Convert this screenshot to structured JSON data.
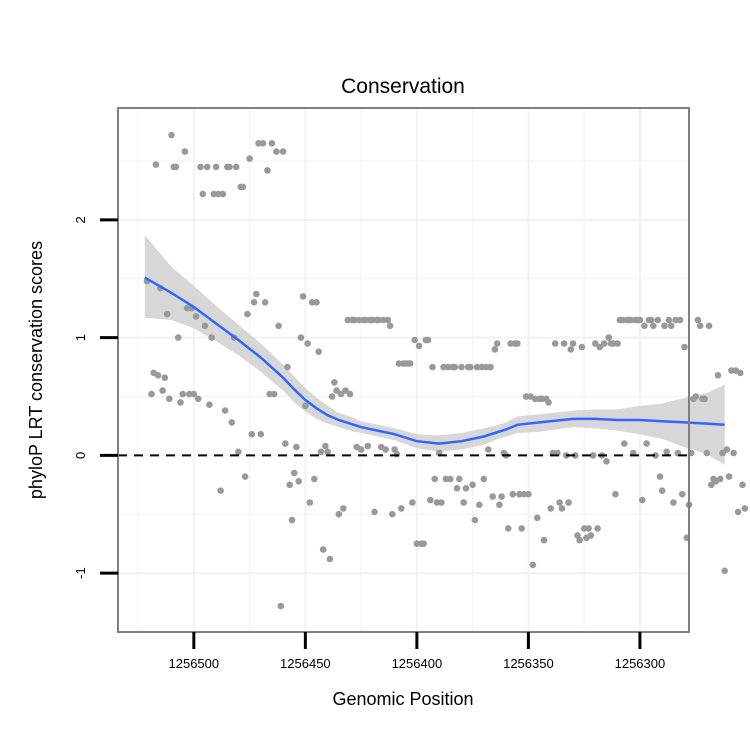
{
  "chart_data": {
    "type": "scatter",
    "title": "Conservation",
    "xlabel": "Genomic Position",
    "ylabel": "phyloP LRT conservation scores",
    "x_reversed": true,
    "xlim": [
      1256534,
      1256278
    ],
    "ylim": [
      -1.5,
      2.95
    ],
    "xticks": [
      1256500,
      1256450,
      1256400,
      1256350,
      1256300
    ],
    "xtick_labels": [
      "1256500",
      "1256450",
      "1256400",
      "1256350",
      "1256300"
    ],
    "yticks": [
      -1,
      0,
      1,
      2
    ],
    "ytick_labels": [
      "-1",
      "0",
      "1",
      "2"
    ],
    "reference_line": {
      "y": 0,
      "style": "dashed"
    },
    "colors": {
      "points": "#999999",
      "smooth": "#3366ff",
      "ribbon": "#d3d3d3",
      "panel_border": "#7f7f7f",
      "grid": "#f2f2f2"
    },
    "points": [
      [
        1256521,
        1.48
      ],
      [
        1256519,
        0.52
      ],
      [
        1256518,
        0.7
      ],
      [
        1256517,
        2.47
      ],
      [
        1256516,
        0.68
      ],
      [
        1256515,
        1.42
      ],
      [
        1256514,
        0.55
      ],
      [
        1256513,
        0.66
      ],
      [
        1256512,
        1.2
      ],
      [
        1256511,
        0.48
      ],
      [
        1256510,
        2.72
      ],
      [
        1256509,
        2.45
      ],
      [
        1256508,
        2.45
      ],
      [
        1256507,
        1.0
      ],
      [
        1256506,
        0.45
      ],
      [
        1256505,
        0.52
      ],
      [
        1256504,
        2.58
      ],
      [
        1256503,
        1.25
      ],
      [
        1256502,
        0.52
      ],
      [
        1256501,
        1.25
      ],
      [
        1256500,
        0.52
      ],
      [
        1256499,
        1.18
      ],
      [
        1256498,
        0.48
      ],
      [
        1256497,
        2.45
      ],
      [
        1256496,
        2.22
      ],
      [
        1256495,
        1.1
      ],
      [
        1256494,
        2.45
      ],
      [
        1256493,
        0.43
      ],
      [
        1256492,
        1.0
      ],
      [
        1256491,
        2.22
      ],
      [
        1256490,
        2.45
      ],
      [
        1256489,
        2.22
      ],
      [
        1256488,
        -0.3
      ],
      [
        1256487,
        2.22
      ],
      [
        1256486,
        0.38
      ],
      [
        1256485,
        2.45
      ],
      [
        1256484,
        2.45
      ],
      [
        1256483,
        0.28
      ],
      [
        1256482,
        1.0
      ],
      [
        1256481,
        2.45
      ],
      [
        1256480,
        0.03
      ],
      [
        1256479,
        2.28
      ],
      [
        1256478,
        2.28
      ],
      [
        1256477,
        -0.18
      ],
      [
        1256476,
        1.2
      ],
      [
        1256475,
        2.52
      ],
      [
        1256474,
        0.18
      ],
      [
        1256473,
        1.3
      ],
      [
        1256472,
        1.37
      ],
      [
        1256471,
        2.65
      ],
      [
        1256470,
        0.18
      ],
      [
        1256469,
        2.65
      ],
      [
        1256468,
        1.3
      ],
      [
        1256467,
        2.42
      ],
      [
        1256466,
        0.52
      ],
      [
        1256465,
        2.65
      ],
      [
        1256464,
        0.52
      ],
      [
        1256463,
        2.58
      ],
      [
        1256462,
        1.1
      ],
      [
        1256461,
        -1.28
      ],
      [
        1256460,
        2.58
      ],
      [
        1256459,
        0.1
      ],
      [
        1256458,
        0.75
      ],
      [
        1256457,
        -0.25
      ],
      [
        1256456,
        -0.55
      ],
      [
        1256455,
        -0.15
      ],
      [
        1256454,
        0.07
      ],
      [
        1256453,
        -0.22
      ],
      [
        1256452,
        1.0
      ],
      [
        1256451,
        1.35
      ],
      [
        1256450,
        0.42
      ],
      [
        1256449,
        0.95
      ],
      [
        1256448,
        -0.4
      ],
      [
        1256447,
        1.3
      ],
      [
        1256446,
        -0.2
      ],
      [
        1256445,
        1.3
      ],
      [
        1256444,
        0.88
      ],
      [
        1256443,
        0.03
      ],
      [
        1256442,
        -0.8
      ],
      [
        1256441,
        0.08
      ],
      [
        1256440,
        0.03
      ],
      [
        1256439,
        -0.88
      ],
      [
        1256438,
        0.5
      ],
      [
        1256437,
        0.62
      ],
      [
        1256436,
        0.55
      ],
      [
        1256435,
        -0.5
      ],
      [
        1256434,
        0.52
      ],
      [
        1256433,
        -0.45
      ],
      [
        1256432,
        0.55
      ],
      [
        1256431,
        1.15
      ],
      [
        1256430,
        0.52
      ],
      [
        1256429,
        1.15
      ],
      [
        1256428,
        1.15
      ],
      [
        1256427,
        0.07
      ],
      [
        1256426,
        1.15
      ],
      [
        1256425,
        0.05
      ],
      [
        1256424,
        1.15
      ],
      [
        1256423,
        1.15
      ],
      [
        1256422,
        0.08
      ],
      [
        1256421,
        1.15
      ],
      [
        1256420,
        1.15
      ],
      [
        1256419,
        -0.48
      ],
      [
        1256418,
        1.15
      ],
      [
        1256417,
        1.15
      ],
      [
        1256416,
        0.07
      ],
      [
        1256415,
        1.15
      ],
      [
        1256414,
        0.05
      ],
      [
        1256413,
        1.15
      ],
      [
        1256412,
        1.1
      ],
      [
        1256411,
        -0.5
      ],
      [
        1256410,
        0.05
      ],
      [
        1256409,
        0.01
      ],
      [
        1256408,
        0.78
      ],
      [
        1256407,
        -0.45
      ],
      [
        1256406,
        0.78
      ],
      [
        1256405,
        0.78
      ],
      [
        1256404,
        0.78
      ],
      [
        1256403,
        0.78
      ],
      [
        1256402,
        -0.4
      ],
      [
        1256401,
        0.98
      ],
      [
        1256400,
        -0.75
      ],
      [
        1256399,
        0.93
      ],
      [
        1256398,
        -0.75
      ],
      [
        1256397,
        -0.75
      ],
      [
        1256396,
        0.98
      ],
      [
        1256395,
        0.98
      ],
      [
        1256394,
        -0.38
      ],
      [
        1256393,
        0.75
      ],
      [
        1256392,
        -0.2
      ],
      [
        1256391,
        -0.4
      ],
      [
        1256390,
        0.02
      ],
      [
        1256389,
        -0.4
      ],
      [
        1256388,
        0.75
      ],
      [
        1256387,
        -0.2
      ],
      [
        1256386,
        0.75
      ],
      [
        1256385,
        -0.2
      ],
      [
        1256384,
        0.75
      ],
      [
        1256383,
        0.75
      ],
      [
        1256382,
        -0.28
      ],
      [
        1256381,
        -0.2
      ],
      [
        1256380,
        0.75
      ],
      [
        1256379,
        -0.4
      ],
      [
        1256378,
        -0.28
      ],
      [
        1256377,
        0.75
      ],
      [
        1256376,
        0.75
      ],
      [
        1256375,
        -0.25
      ],
      [
        1256374,
        -0.55
      ],
      [
        1256373,
        0.75
      ],
      [
        1256372,
        -0.42
      ],
      [
        1256371,
        0.75
      ],
      [
        1256370,
        -0.2
      ],
      [
        1256369,
        0.75
      ],
      [
        1256368,
        0.05
      ],
      [
        1256367,
        0.75
      ],
      [
        1256366,
        -0.35
      ],
      [
        1256365,
        0.9
      ],
      [
        1256364,
        0.95
      ],
      [
        1256363,
        -0.42
      ],
      [
        1256362,
        -0.35
      ],
      [
        1256361,
        0.02
      ],
      [
        1256360,
        0.0
      ],
      [
        1256359,
        -0.62
      ],
      [
        1256358,
        0.95
      ],
      [
        1256357,
        -0.33
      ],
      [
        1256356,
        0.95
      ],
      [
        1256355,
        0.95
      ],
      [
        1256354,
        -0.33
      ],
      [
        1256353,
        -0.62
      ],
      [
        1256352,
        -0.33
      ],
      [
        1256351,
        0.5
      ],
      [
        1256350,
        -0.33
      ],
      [
        1256349,
        0.5
      ],
      [
        1256348,
        -0.93
      ],
      [
        1256347,
        0.48
      ],
      [
        1256346,
        -0.53
      ],
      [
        1256345,
        0.48
      ],
      [
        1256344,
        0.48
      ],
      [
        1256343,
        -0.72
      ],
      [
        1256342,
        0.48
      ],
      [
        1256341,
        0.45
      ],
      [
        1256340,
        -0.45
      ],
      [
        1256339,
        0.02
      ],
      [
        1256338,
        0.95
      ],
      [
        1256337,
        0.02
      ],
      [
        1256336,
        -0.4
      ],
      [
        1256335,
        -0.45
      ],
      [
        1256334,
        0.95
      ],
      [
        1256333,
        0.0
      ],
      [
        1256332,
        -0.4
      ],
      [
        1256331,
        0.9
      ],
      [
        1256330,
        0.95
      ],
      [
        1256329,
        0.0
      ],
      [
        1256328,
        -0.68
      ],
      [
        1256327,
        -0.72
      ],
      [
        1256326,
        0.92
      ],
      [
        1256325,
        -0.62
      ],
      [
        1256324,
        -0.7
      ],
      [
        1256323,
        -0.62
      ],
      [
        1256322,
        -0.68
      ],
      [
        1256321,
        0.0
      ],
      [
        1256320,
        0.95
      ],
      [
        1256319,
        -0.62
      ],
      [
        1256318,
        0.92
      ],
      [
        1256317,
        0.0
      ],
      [
        1256316,
        0.95
      ],
      [
        1256315,
        -0.05
      ],
      [
        1256314,
        1.0
      ],
      [
        1256313,
        0.95
      ],
      [
        1256312,
        0.95
      ],
      [
        1256311,
        -0.33
      ],
      [
        1256310,
        0.95
      ],
      [
        1256309,
        1.15
      ],
      [
        1256308,
        1.15
      ],
      [
        1256307,
        0.1
      ],
      [
        1256306,
        1.15
      ],
      [
        1256305,
        1.15
      ],
      [
        1256304,
        1.15
      ],
      [
        1256303,
        0.02
      ],
      [
        1256302,
        1.15
      ],
      [
        1256301,
        1.15
      ],
      [
        1256300,
        1.15
      ],
      [
        1256299,
        -0.38
      ],
      [
        1256298,
        1.1
      ],
      [
        1256297,
        0.1
      ],
      [
        1256296,
        1.15
      ],
      [
        1256295,
        1.15
      ],
      [
        1256294,
        1.1
      ],
      [
        1256293,
        0.0
      ],
      [
        1256292,
        1.15
      ],
      [
        1256291,
        -0.18
      ],
      [
        1256290,
        -0.3
      ],
      [
        1256289,
        1.1
      ],
      [
        1256288,
        0.03
      ],
      [
        1256287,
        1.15
      ],
      [
        1256286,
        1.1
      ],
      [
        1256285,
        -0.4
      ],
      [
        1256284,
        1.15
      ],
      [
        1256283,
        0.02
      ],
      [
        1256282,
        1.15
      ],
      [
        1256281,
        -0.33
      ],
      [
        1256280,
        0.92
      ],
      [
        1256279,
        -0.7
      ],
      [
        1256278,
        -0.42
      ],
      [
        1256277,
        0.02
      ],
      [
        1256276,
        0.48
      ],
      [
        1256275,
        0.5
      ],
      [
        1256274,
        1.15
      ],
      [
        1256273,
        1.1
      ],
      [
        1256272,
        0.48
      ],
      [
        1256271,
        0.48
      ],
      [
        1256270,
        0.02
      ],
      [
        1256269,
        1.1
      ],
      [
        1256268,
        -0.25
      ],
      [
        1256267,
        -0.2
      ],
      [
        1256266,
        -0.22
      ],
      [
        1256265,
        0.68
      ],
      [
        1256264,
        -0.2
      ],
      [
        1256263,
        0.02
      ],
      [
        1256262,
        -0.98
      ],
      [
        1256261,
        0.05
      ],
      [
        1256260,
        -0.18
      ],
      [
        1256259,
        0.72
      ],
      [
        1256258,
        0.02
      ],
      [
        1256257,
        0.72
      ],
      [
        1256256,
        -0.48
      ],
      [
        1256255,
        0.7
      ],
      [
        1256254,
        -0.25
      ],
      [
        1256253,
        -0.45
      ]
    ],
    "smooth": {
      "x": [
        1256522,
        1256510,
        1256500,
        1256490,
        1256480,
        1256470,
        1256460,
        1256455,
        1256450,
        1256445,
        1256440,
        1256435,
        1256430,
        1256425,
        1256420,
        1256410,
        1256400,
        1256390,
        1256380,
        1256375,
        1256370,
        1256365,
        1256360,
        1256355,
        1256345,
        1256330,
        1256320,
        1256310,
        1256300,
        1256290,
        1256280,
        1256270,
        1256262
      ],
      "y": [
        1.51,
        1.38,
        1.26,
        1.12,
        0.98,
        0.83,
        0.66,
        0.56,
        0.47,
        0.4,
        0.34,
        0.3,
        0.27,
        0.24,
        0.22,
        0.18,
        0.12,
        0.1,
        0.12,
        0.14,
        0.16,
        0.19,
        0.22,
        0.26,
        0.28,
        0.31,
        0.31,
        0.3,
        0.3,
        0.29,
        0.28,
        0.27,
        0.26
      ],
      "lo": [
        1.17,
        1.15,
        1.08,
        0.97,
        0.85,
        0.71,
        0.55,
        0.45,
        0.37,
        0.31,
        0.27,
        0.24,
        0.21,
        0.19,
        0.17,
        0.13,
        0.06,
        0.03,
        0.05,
        0.07,
        0.09,
        0.13,
        0.16,
        0.19,
        0.2,
        0.24,
        0.23,
        0.21,
        0.18,
        0.14,
        0.07,
        0.01,
        -0.08
      ],
      "hi": [
        1.87,
        1.6,
        1.44,
        1.27,
        1.11,
        0.95,
        0.77,
        0.67,
        0.57,
        0.49,
        0.42,
        0.36,
        0.33,
        0.29,
        0.27,
        0.23,
        0.18,
        0.17,
        0.19,
        0.21,
        0.23,
        0.25,
        0.28,
        0.33,
        0.35,
        0.38,
        0.39,
        0.39,
        0.42,
        0.44,
        0.49,
        0.53,
        0.6
      ]
    }
  }
}
